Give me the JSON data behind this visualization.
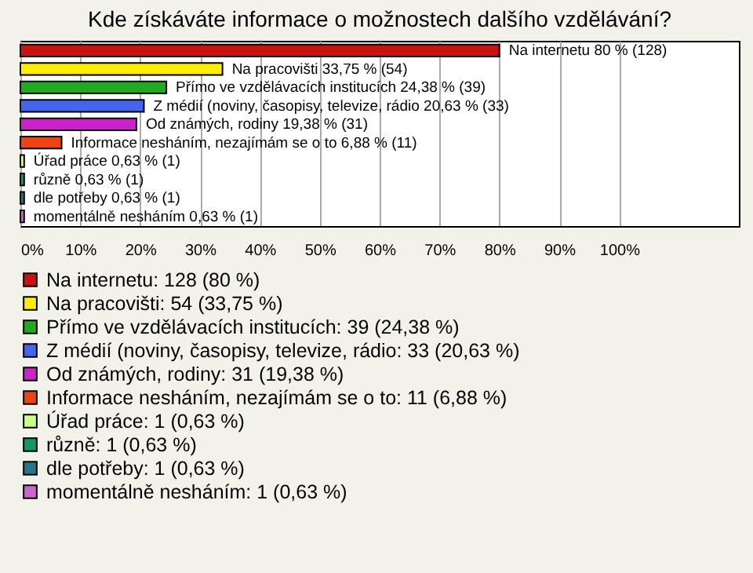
{
  "chart_data": {
    "type": "bar",
    "orientation": "horizontal",
    "title": "Kde získáváte informace o možnostech dalšího vzdělávání?",
    "categories": [
      null,
      null,
      null,
      null,
      null,
      null,
      null,
      null,
      null,
      null
    ],
    "series": [
      {
        "name": "Na internetu: 128 (80 %)",
        "color": "#cc1111",
        "values": [
          80,
          null,
          null,
          null,
          null,
          null,
          null,
          null,
          null,
          null
        ],
        "value_labels": [
          "Na internetu 80 % (128)",
          null,
          null,
          null,
          null,
          null,
          null,
          null,
          null,
          null
        ]
      },
      {
        "name": "Na pracovišti: 54 (33,75 %)",
        "color": "#ffee00",
        "values": [
          null,
          33.75,
          null,
          null,
          null,
          null,
          null,
          null,
          null,
          null
        ],
        "value_labels": [
          null,
          "Na pracovišti 33,75 % (54)",
          null,
          null,
          null,
          null,
          null,
          null,
          null,
          null
        ]
      },
      {
        "name": "Přímo ve vzdělávacích institucích: 39 (24,38 %)",
        "color": "#22aa22",
        "values": [
          null,
          null,
          24.38,
          null,
          null,
          null,
          null,
          null,
          null,
          null
        ],
        "value_labels": [
          null,
          null,
          "Přímo ve vzdělávacích institucích 24,38 % (39)",
          null,
          null,
          null,
          null,
          null,
          null,
          null
        ]
      },
      {
        "name": "Z médií (noviny, časopisy, televize, rádio: 33 (20,63 %)",
        "color": "#4466ee",
        "values": [
          null,
          null,
          null,
          20.63,
          null,
          null,
          null,
          null,
          null,
          null
        ],
        "value_labels": [
          null,
          null,
          null,
          "Z médií (noviny, časopisy, televize, rádio 20,63 % (33)",
          null,
          null,
          null,
          null,
          null,
          null
        ]
      },
      {
        "name": "Od známých, rodiny: 31 (19,38 %)",
        "color": "#cc22cc",
        "values": [
          null,
          null,
          null,
          null,
          19.38,
          null,
          null,
          null,
          null,
          null
        ],
        "value_labels": [
          null,
          null,
          null,
          null,
          "Od známých, rodiny 19,38 % (31)",
          null,
          null,
          null,
          null,
          null
        ]
      },
      {
        "name": "Informace nesháním, nezajímám se o to: 11 (6,88 %)",
        "color": "#ee4411",
        "values": [
          null,
          null,
          null,
          null,
          null,
          6.88,
          null,
          null,
          null,
          null
        ],
        "value_labels": [
          null,
          null,
          null,
          null,
          null,
          "Informace nesháním, nezajímám se o to 6,88 % (11)",
          null,
          null,
          null,
          null
        ]
      },
      {
        "name": "Úřad práce: 1 (0,63 %)",
        "color": "#ccff88",
        "values": [
          null,
          null,
          null,
          null,
          null,
          null,
          0.63,
          null,
          null,
          null
        ],
        "value_labels": [
          null,
          null,
          null,
          null,
          null,
          null,
          "Úřad práce 0,63 % (1)",
          null,
          null,
          null
        ]
      },
      {
        "name": "různě: 1 (0,63 %)",
        "color": "#119966",
        "values": [
          null,
          null,
          null,
          null,
          null,
          null,
          null,
          0.63,
          null,
          null
        ],
        "value_labels": [
          null,
          null,
          null,
          null,
          null,
          null,
          null,
          "různě 0,63 % (1)",
          null,
          null
        ]
      },
      {
        "name": "dle potřeby: 1 (0,63 %)",
        "color": "#227788",
        "values": [
          null,
          null,
          null,
          null,
          null,
          null,
          null,
          null,
          0.63,
          null
        ],
        "value_labels": [
          null,
          null,
          null,
          null,
          null,
          null,
          null,
          null,
          "dle potřeby 0,63 % (1)",
          null
        ]
      },
      {
        "name": "momentálně nesháním: 1 (0,63 %)",
        "color": "#cc66cc",
        "values": [
          null,
          null,
          null,
          null,
          null,
          null,
          null,
          null,
          null,
          0.63
        ],
        "value_labels": [
          null,
          null,
          null,
          null,
          null,
          null,
          null,
          null,
          null,
          "momentálně nesháním 0,63 % (1)"
        ]
      }
    ],
    "xlim": [
      0,
      120
    ],
    "xticks": [
      {
        "value": 0,
        "label": "0%"
      },
      {
        "value": 10,
        "label": "10%"
      },
      {
        "value": 20,
        "label": "20%"
      },
      {
        "value": 30,
        "label": "30%"
      },
      {
        "value": 40,
        "label": "40%"
      },
      {
        "value": 50,
        "label": "50%"
      },
      {
        "value": 60,
        "label": "60%"
      },
      {
        "value": 70,
        "label": "70%"
      },
      {
        "value": 80,
        "label": "80%"
      },
      {
        "value": 90,
        "label": "90%"
      },
      {
        "value": 100,
        "label": "100%"
      }
    ],
    "grid": "x",
    "legend": "bottom",
    "tick_labels": "x"
  }
}
